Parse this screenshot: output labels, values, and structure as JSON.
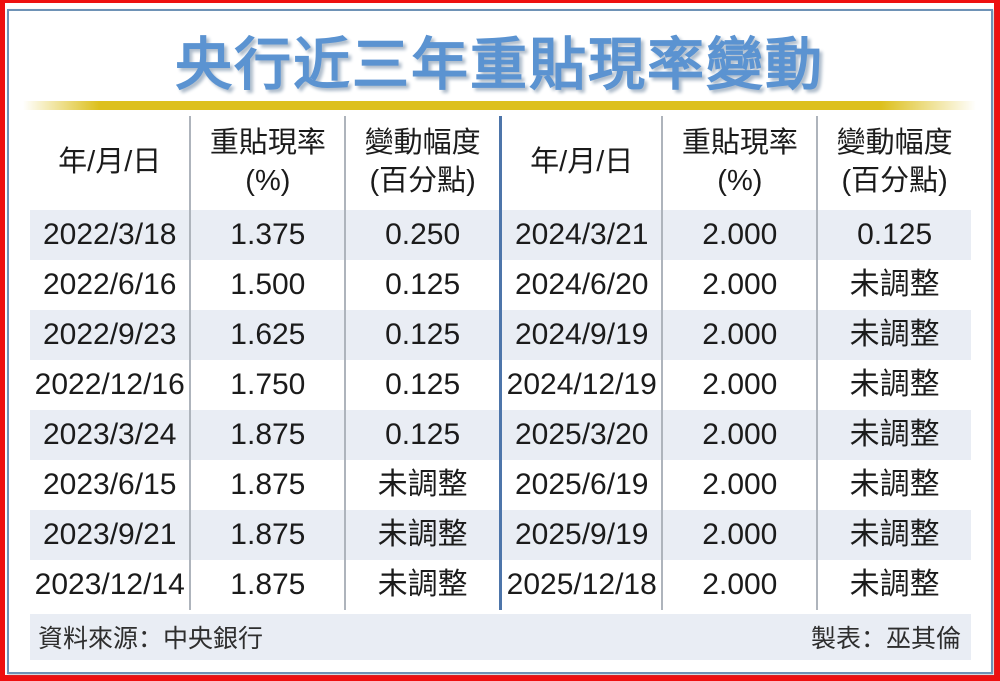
{
  "title": "央行近三年重貼現率變動",
  "colors": {
    "outer_border": "#ee1010",
    "inner_frame": "#6e92b6",
    "title_blue": "#5b93d1",
    "gold_bar": "#ddc01d",
    "alt_row": "#e9edf4",
    "column_divider": "#aeb4bc",
    "center_divider": "#4d75aa",
    "text": "#1b1b1b"
  },
  "header": {
    "cells": [
      {
        "line1": "年/月/日",
        "line2": ""
      },
      {
        "line1": "重貼現率",
        "line2": "(%)"
      },
      {
        "line1": "變動幅度",
        "line2": "(百分點)"
      }
    ]
  },
  "chart_data": {
    "type": "table",
    "title": "央行近三年重貼現率變動",
    "columns": [
      "年/月/日",
      "重貼現率(%)",
      "變動幅度(百分點)"
    ],
    "rows_left": [
      [
        "2022/3/18",
        "1.375",
        "0.250"
      ],
      [
        "2022/6/16",
        "1.500",
        "0.125"
      ],
      [
        "2022/9/23",
        "1.625",
        "0.125"
      ],
      [
        "2022/12/16",
        "1.750",
        "0.125"
      ],
      [
        "2023/3/24",
        "1.875",
        "0.125"
      ],
      [
        "2023/6/15",
        "1.875",
        "未調整"
      ],
      [
        "2023/9/21",
        "1.875",
        "未調整"
      ],
      [
        "2023/12/14",
        "1.875",
        "未調整"
      ]
    ],
    "rows_right": [
      [
        "2024/3/21",
        "2.000",
        "0.125"
      ],
      [
        "2024/6/20",
        "2.000",
        "未調整"
      ],
      [
        "2024/9/19",
        "2.000",
        "未調整"
      ],
      [
        "2024/12/19",
        "2.000",
        "未調整"
      ],
      [
        "2025/3/20",
        "2.000",
        "未調整"
      ],
      [
        "2025/6/19",
        "2.000",
        "未調整"
      ],
      [
        "2025/9/19",
        "2.000",
        "未調整"
      ],
      [
        "2025/12/18",
        "2.000",
        "未調整"
      ]
    ]
  },
  "footer": {
    "source": "資料來源：中央銀行",
    "credit": "製表：巫其倫"
  }
}
